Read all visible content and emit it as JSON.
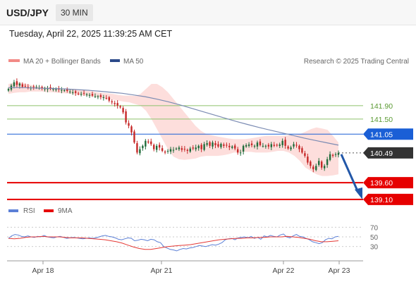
{
  "header": {
    "symbol": "USD/JPY",
    "timeframe": "30 MIN"
  },
  "datetime": "Tuesday, April 22, 2025 11:39:25 AM CET",
  "legend": {
    "ma": "MA 20 + Bollinger Bands",
    "ma50": "MA 50",
    "credit": "Research © 2025 Trading Central"
  },
  "rsi_legend": {
    "rsi": "RSI",
    "ma": "9MA"
  },
  "colors": {
    "resistance": "#8dc26b",
    "pivot": "#1a5fd6",
    "support": "#e60000",
    "candle_up": "#1f6b3a",
    "candle_down": "#c62828",
    "band": "#fcd3d0",
    "ma50": "#7b8bb3",
    "arrow": "#2257a8",
    "rsi": "#5b7fd6",
    "rsi_ma": "#e53935"
  },
  "chart_data": [
    {
      "type": "candlestick",
      "ylim": [
        138.95,
        142.95
      ],
      "x_ticks": [
        "Apr 18",
        "Apr 21",
        "Apr 22",
        "Apr 23"
      ],
      "levels": [
        {
          "value": 141.9,
          "label": "141.90",
          "kind": "resistance"
        },
        {
          "value": 141.5,
          "label": "141.50",
          "kind": "resistance"
        },
        {
          "value": 141.05,
          "label": "141.05",
          "kind": "pivot"
        },
        {
          "value": 140.49,
          "label": "140.49",
          "kind": "last"
        },
        {
          "value": 139.6,
          "label": "139.60",
          "kind": "support"
        },
        {
          "value": 139.1,
          "label": "139.10",
          "kind": "support"
        }
      ],
      "close_series": [
        142.4,
        142.5,
        142.6,
        142.52,
        142.56,
        142.46,
        142.48,
        142.45,
        142.44,
        142.46,
        142.45,
        142.43,
        142.42,
        142.41,
        142.42,
        142.4,
        142.4,
        142.39,
        142.38,
        142.37,
        142.36,
        142.34,
        142.32,
        142.3,
        142.28,
        142.25,
        142.25,
        142.26,
        142.24,
        142.22,
        142.2,
        142.18,
        142.18,
        142.16,
        142.15,
        142.12,
        142.05,
        142.0,
        141.95,
        141.9,
        141.85,
        141.7,
        141.4,
        141.3,
        141.1,
        140.8,
        140.5,
        140.6,
        140.7,
        140.85,
        140.8,
        140.75,
        140.6,
        140.7,
        140.65,
        140.55,
        140.5,
        140.55,
        140.6,
        140.58,
        140.62,
        140.65,
        140.58,
        140.6,
        140.55,
        140.62,
        140.62,
        140.65,
        140.7,
        140.6,
        140.75,
        140.78,
        140.7,
        140.8,
        140.72,
        140.68,
        140.76,
        140.7,
        140.72,
        140.66,
        140.68,
        140.62,
        140.5,
        140.5,
        140.7,
        140.72,
        140.74,
        140.72,
        140.7,
        140.8,
        140.72,
        140.7,
        140.7,
        140.68,
        140.75,
        140.7,
        140.72,
        140.74,
        140.85,
        140.7,
        140.62,
        140.65,
        140.75,
        140.72,
        140.6,
        140.5,
        140.4,
        140.2,
        140.1,
        140.0,
        140.1,
        140.25,
        140.05,
        140.1,
        140.3,
        140.45,
        140.4,
        140.45,
        140.49
      ],
      "ma50_series": [
        142.44,
        142.44,
        142.43,
        142.42,
        142.41,
        142.4,
        142.38,
        142.36,
        142.33,
        142.3,
        142.27,
        142.22,
        142.17,
        142.1,
        142.02,
        141.93,
        141.83,
        141.73,
        141.63,
        141.53,
        141.43,
        141.34,
        141.25,
        141.17,
        141.09,
        141.01,
        140.93,
        140.86,
        140.79,
        140.72
      ],
      "bb_upper": [
        142.55,
        142.57,
        142.6,
        142.55,
        142.52,
        142.48,
        142.46,
        142.45,
        142.44,
        142.42,
        142.41,
        142.4,
        142.4,
        142.38,
        142.35,
        142.33,
        142.3,
        142.28,
        142.27,
        142.25,
        142.22,
        142.2,
        142.2,
        142.19,
        142.25,
        142.4,
        142.55,
        142.55,
        142.45,
        142.3,
        142.1,
        141.9,
        141.7,
        141.5,
        141.3,
        141.15,
        141.05,
        141.02,
        140.98,
        140.95,
        140.92,
        140.9,
        140.9,
        140.9,
        140.92,
        140.95,
        140.98,
        141.0,
        141.0,
        141.0,
        141.0,
        141.02,
        141.02,
        141.05,
        141.12,
        141.2,
        141.25,
        141.22,
        141.18,
        141.0,
        140.8
      ],
      "bb_lower": [
        142.25,
        142.28,
        142.3,
        142.3,
        142.32,
        142.32,
        142.32,
        142.3,
        142.3,
        142.28,
        142.27,
        142.26,
        142.24,
        142.22,
        142.2,
        142.18,
        142.15,
        142.13,
        142.1,
        142.08,
        142.05,
        142.02,
        142.0,
        141.95,
        141.9,
        141.75,
        141.5,
        141.2,
        140.9,
        140.6,
        140.38,
        140.3,
        140.28,
        140.3,
        140.32,
        140.38,
        140.4,
        140.4,
        140.4,
        140.42,
        140.45,
        140.5,
        140.5,
        140.52,
        140.52,
        140.5,
        140.5,
        140.5,
        140.52,
        140.55,
        140.55,
        140.5,
        140.4,
        140.25,
        140.05,
        139.95,
        139.85,
        139.8,
        139.8,
        139.82,
        139.85
      ]
    },
    {
      "type": "line",
      "name": "RSI panel",
      "ylim": [
        15,
        85
      ],
      "y_ticks": [
        70,
        50,
        30
      ],
      "rsi_series": [
        47,
        52,
        55,
        54,
        51,
        50,
        52,
        50,
        49,
        51,
        50,
        53,
        50,
        49,
        48,
        50,
        51,
        49,
        47,
        48,
        49,
        48,
        47,
        46,
        47,
        48,
        47,
        48,
        50,
        52,
        53,
        51,
        50,
        48,
        45,
        44,
        46,
        48,
        47,
        42,
        43,
        45,
        44,
        42,
        45,
        44,
        40,
        38,
        30,
        27,
        24,
        23,
        21,
        24,
        26,
        25,
        27,
        28,
        30,
        32,
        31,
        30,
        32,
        34,
        33,
        35,
        38,
        44,
        46,
        47,
        44,
        48,
        49,
        50,
        48,
        51,
        47,
        49,
        45,
        52,
        50,
        53,
        51,
        50,
        54,
        56,
        50,
        48,
        52,
        55,
        51,
        50,
        47,
        44,
        40,
        38,
        36,
        38,
        44,
        47,
        46,
        50,
        51
      ],
      "rsi_ma_series": [
        47,
        46,
        47,
        49,
        50,
        50,
        51,
        50,
        50,
        50,
        49,
        48,
        48,
        48,
        47,
        46,
        45,
        44,
        42,
        40,
        37,
        33,
        29,
        26,
        24,
        24,
        26,
        28,
        30,
        31,
        32,
        33,
        34,
        36,
        38,
        40,
        42,
        44,
        45,
        46,
        47,
        47,
        48,
        48,
        49,
        49,
        50,
        50,
        50,
        51,
        50,
        49,
        47,
        45,
        42,
        40,
        40,
        41,
        42
      ]
    }
  ]
}
